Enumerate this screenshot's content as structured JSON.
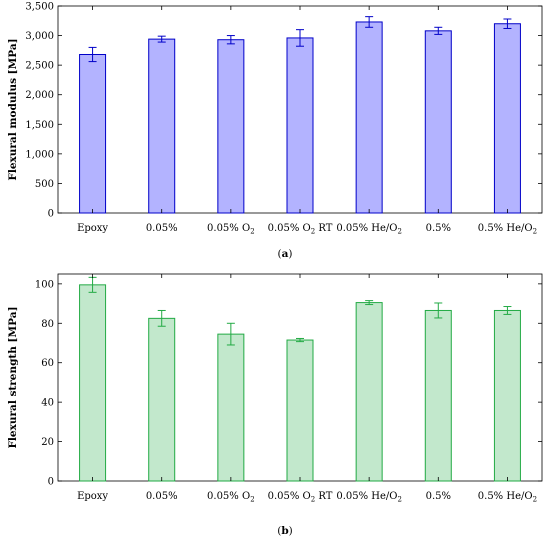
{
  "chart_data": [
    {
      "type": "bar",
      "caption_letter": "a",
      "ylabel": "Flexural modulus [MPa]",
      "ylim": [
        0,
        3500
      ],
      "yticks": [
        0,
        500,
        1000,
        1500,
        2000,
        2500,
        3000,
        3500
      ],
      "ytick_labels": [
        "0",
        "500",
        "1,000",
        "1,500",
        "2,000",
        "2,500",
        "3,000",
        "3,500"
      ],
      "categories": [
        {
          "base": "Epoxy",
          "sub": ""
        },
        {
          "base": "0.05%",
          "sub": ""
        },
        {
          "base": "0.05% O",
          "sub": "2"
        },
        {
          "base": "0.05% O",
          "sub": "2",
          "suffix": " RT"
        },
        {
          "base": "0.05% He/O",
          "sub": "2"
        },
        {
          "base": "0.5%",
          "sub": ""
        },
        {
          "base": "0.5% He/O",
          "sub": "2"
        }
      ],
      "values": [
        2680,
        2940,
        2930,
        2960,
        3230,
        3080,
        3200
      ],
      "errors": [
        120,
        50,
        70,
        140,
        90,
        60,
        80
      ],
      "bar_color": "#b3b3ff",
      "edge_color": "#0000c8",
      "grid": false
    },
    {
      "type": "bar",
      "caption_letter": "b",
      "ylabel": "Flexural strength [MPa]",
      "ylim": [
        0,
        105
      ],
      "yticks": [
        0,
        20,
        40,
        60,
        80,
        100
      ],
      "ytick_labels": [
        "0",
        "20",
        "40",
        "60",
        "80",
        "100"
      ],
      "categories": [
        {
          "base": "Epoxy",
          "sub": ""
        },
        {
          "base": "0.05%",
          "sub": ""
        },
        {
          "base": "0.05% O",
          "sub": "2"
        },
        {
          "base": "0.05% O",
          "sub": "2",
          "suffix": " RT"
        },
        {
          "base": "0.05% He/O",
          "sub": "2"
        },
        {
          "base": "0.5%",
          "sub": ""
        },
        {
          "base": "0.5% He/O",
          "sub": "2"
        }
      ],
      "values": [
        99.5,
        82.5,
        74.5,
        71.5,
        90.5,
        86.5,
        86.5
      ],
      "errors": [
        3.8,
        4.0,
        5.5,
        0.8,
        1.0,
        3.8,
        2.0
      ],
      "bar_color": "#c2e8cc",
      "edge_color": "#22aa44",
      "grid": false
    }
  ]
}
